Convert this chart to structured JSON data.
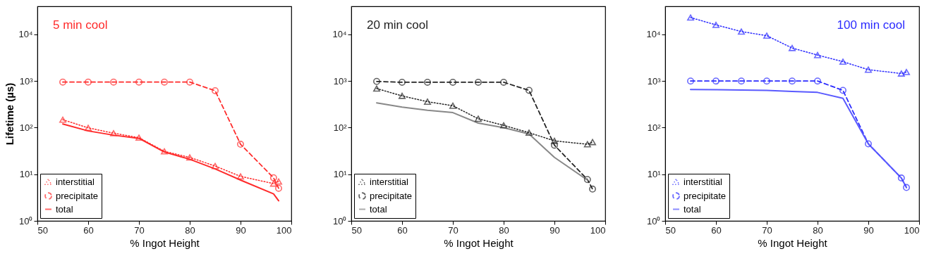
{
  "chart_data": [
    {
      "type": "line",
      "title": "5 min cool",
      "xlabel": "% Ingot Height",
      "ylabel": "Lifetime (µs)",
      "log": true,
      "grid": false,
      "legend": "bottom left",
      "xlim": [
        50,
        100
      ],
      "xticks": [
        50,
        60,
        70,
        80,
        90,
        100
      ],
      "ylim": [
        1,
        40000
      ],
      "yticks": [
        {
          "value": 1,
          "label": "10⁰"
        },
        {
          "value": 10,
          "label": "10¹"
        },
        {
          "value": 100,
          "label": "10²"
        },
        {
          "value": 1000,
          "label": "10³"
        },
        {
          "value": 10000,
          "label": "10⁴"
        }
      ],
      "x": [
        55,
        60,
        65,
        70,
        75,
        80,
        85,
        90,
        96.5,
        97.5
      ],
      "series": [
        {
          "name": "interstitial",
          "color": "#ff2a2a",
          "marker": "triangle",
          "line_style": "dotted",
          "values": [
            148,
            99,
            76,
            61,
            31,
            23,
            15,
            9,
            6.3,
            7
          ]
        },
        {
          "name": "precipitate",
          "color": "#ff2a2a",
          "marker": "circle",
          "line_style": "dashed",
          "values": [
            950,
            950,
            950,
            950,
            950,
            950,
            620,
            44,
            8.4,
            5
          ]
        },
        {
          "name": "total",
          "color": "#ff2a2a",
          "marker": "none",
          "line_style": "solid",
          "values": [
            120,
            85,
            69,
            59,
            30,
            21,
            13,
            7.5,
            3.8,
            2.7
          ]
        }
      ]
    },
    {
      "type": "line",
      "title": "20 min cool",
      "xlabel": "% Ingot Height",
      "log": true,
      "grid": false,
      "legend": "bottom left",
      "xlim": [
        50,
        100
      ],
      "xticks": [
        50,
        60,
        70,
        80,
        90,
        100
      ],
      "ylim": [
        1,
        40000
      ],
      "yticks": [
        {
          "value": 1,
          "label": "10⁰"
        },
        {
          "value": 10,
          "label": "10¹"
        },
        {
          "value": 100,
          "label": "10²"
        },
        {
          "value": 1000,
          "label": "10³"
        },
        {
          "value": 10000,
          "label": "10⁴"
        }
      ],
      "x": [
        55,
        60,
        65,
        70,
        75,
        80,
        85,
        90,
        96.5,
        97.5
      ],
      "series": [
        {
          "name": "interstitial",
          "color": "#222222",
          "marker": "triangle",
          "line_style": "dotted",
          "values": [
            690,
            480,
            360,
            295,
            155,
            112,
            78,
            52,
            44,
            49
          ]
        },
        {
          "name": "precipitate",
          "color": "#222222",
          "marker": "circle",
          "line_style": "dashed",
          "values": [
            980,
            940,
            940,
            940,
            940,
            940,
            630,
            42,
            7.7,
            4.8
          ]
        },
        {
          "name": "total",
          "color": "#888888",
          "marker": "none",
          "line_style": "solid",
          "values": [
            340,
            275,
            235,
            210,
            125,
            100,
            73,
            23,
            7.5,
            null
          ]
        }
      ]
    },
    {
      "type": "line",
      "title": "100 min cool",
      "xlabel": "% Ingot Height",
      "log": true,
      "grid": false,
      "legend": "bottom left",
      "xlim": [
        50,
        100
      ],
      "xticks": [
        50,
        60,
        70,
        80,
        90,
        100
      ],
      "ylim": [
        1,
        40000
      ],
      "yticks": [
        {
          "value": 1,
          "label": "10⁰"
        },
        {
          "value": 10,
          "label": "10¹"
        },
        {
          "value": 100,
          "label": "10²"
        },
        {
          "value": 1000,
          "label": "10³"
        },
        {
          "value": 10000,
          "label": "10⁴"
        }
      ],
      "x": [
        55,
        60,
        65,
        70,
        75,
        80,
        85,
        90,
        96.5,
        97.5
      ],
      "series": [
        {
          "name": "interstitial",
          "color": "#2a2aff",
          "marker": "triangle",
          "line_style": "dotted",
          "values": [
            23000,
            16000,
            11500,
            9400,
            5100,
            3600,
            2600,
            1750,
            1450,
            1560
          ]
        },
        {
          "name": "precipitate",
          "color": "#2a2aff",
          "marker": "circle",
          "line_style": "dashed",
          "values": [
            1000,
            1000,
            1000,
            1000,
            1000,
            1000,
            630,
            45,
            8.3,
            5.2
          ]
        },
        {
          "name": "total",
          "color": "#5a5aff",
          "marker": "none",
          "line_style": "solid",
          "values": [
            660,
            650,
            640,
            630,
            600,
            570,
            425,
            45,
            8.3,
            5.2
          ]
        }
      ]
    }
  ]
}
